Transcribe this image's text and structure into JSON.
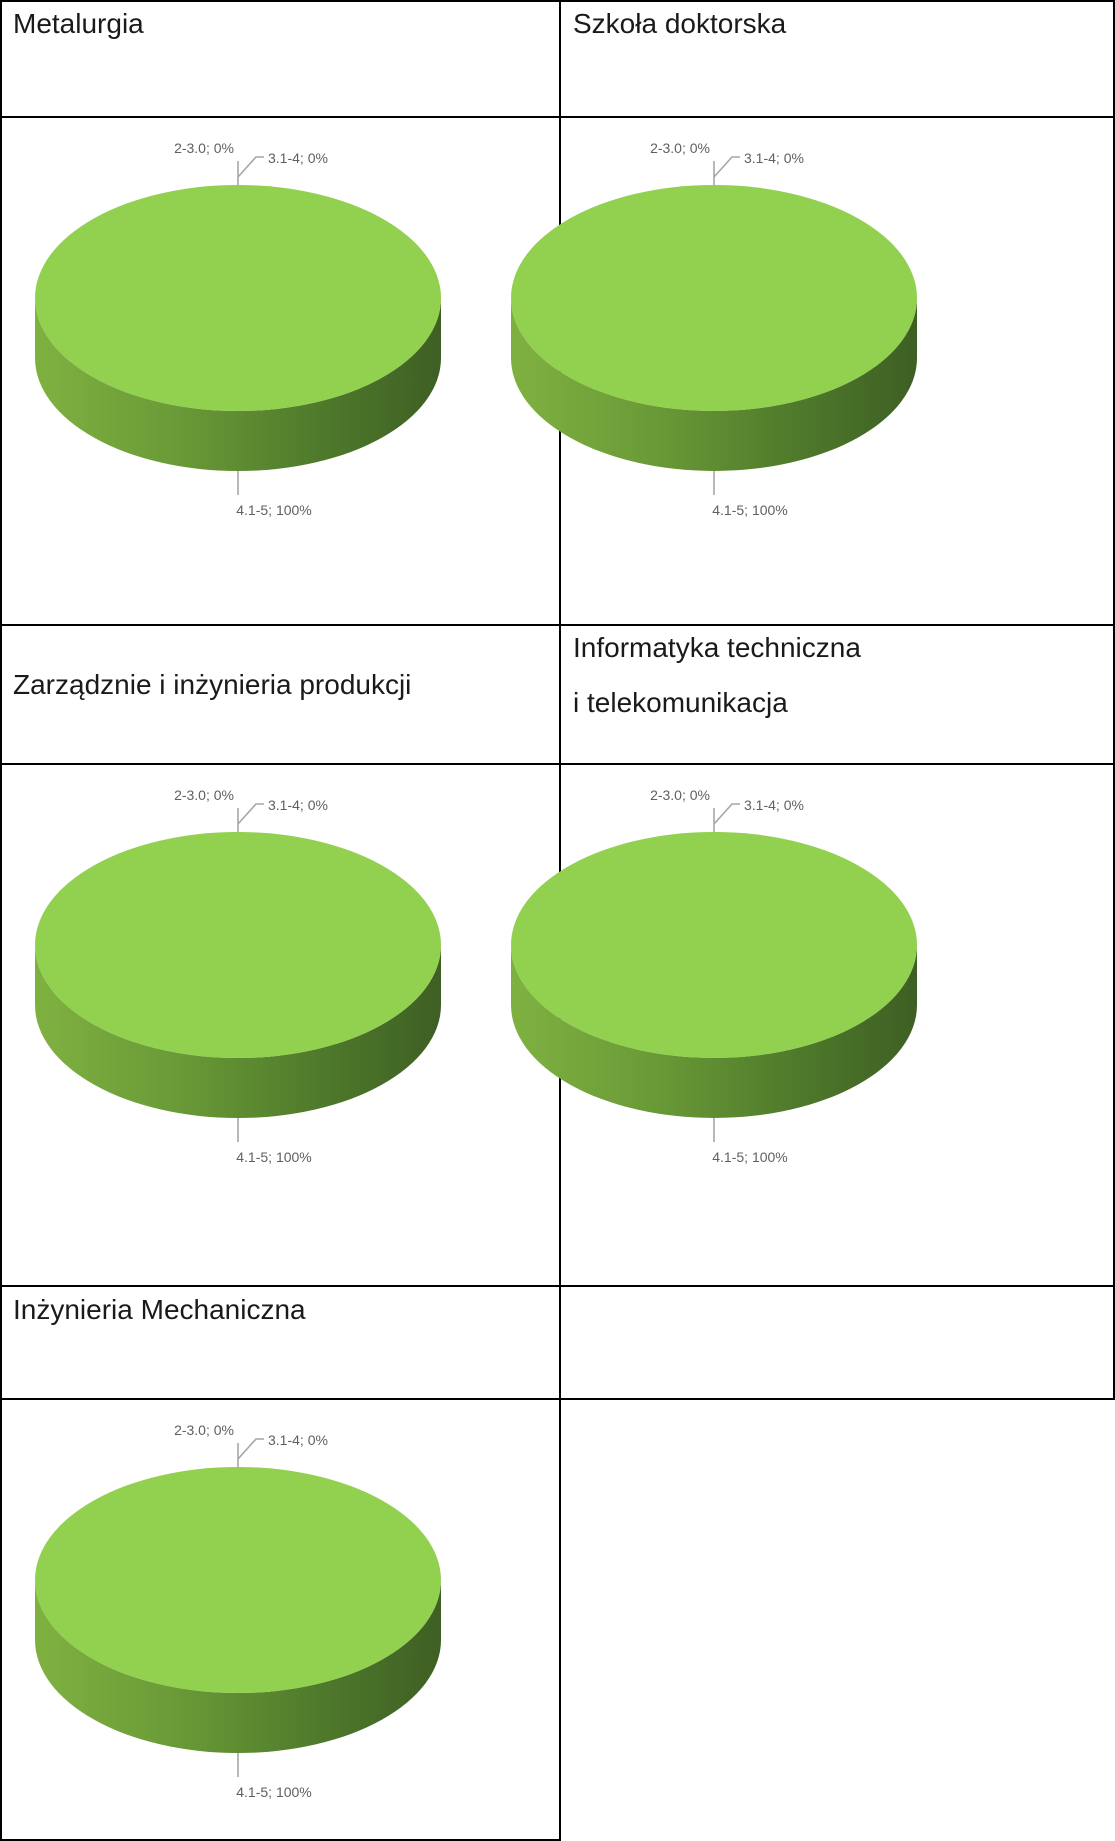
{
  "colors": {
    "top": "#92d050",
    "side_light": "#7fb141",
    "side_dark": "#3e5f24",
    "border": "#000000",
    "label": "#5f5f5f"
  },
  "chart_data": [
    {
      "type": "pie",
      "title": "Metalurgia",
      "categories": [
        "2-3.0",
        "3.1-4",
        "4.1-5"
      ],
      "values": [
        0,
        0,
        100
      ],
      "labels": [
        "2-3.0; 0%",
        "3.1-4; 0%",
        "4.1-5; 100%"
      ]
    },
    {
      "type": "pie",
      "title": "Szkoła doktorska",
      "categories": [
        "2-3.0",
        "3.1-4",
        "4.1-5"
      ],
      "values": [
        0,
        0,
        100
      ],
      "labels": [
        "2-3.0; 0%",
        "3.1-4; 0%",
        "4.1-5; 100%"
      ]
    },
    {
      "type": "pie",
      "title": "Zarządznie i inżynieria produkcji",
      "categories": [
        "2-3.0",
        "3.1-4",
        "4.1-5"
      ],
      "values": [
        0,
        0,
        100
      ],
      "labels": [
        "2-3.0; 0%",
        "3.1-4; 0%",
        "4.1-5; 100%"
      ]
    },
    {
      "type": "pie",
      "title_line1": "Informatyka techniczna",
      "title_line2": "i telekomunikacja",
      "categories": [
        "2-3.0",
        "3.1-4",
        "4.1-5"
      ],
      "values": [
        0,
        0,
        100
      ],
      "labels": [
        "2-3.0; 0%",
        "3.1-4; 0%",
        "4.1-5; 100%"
      ]
    },
    {
      "type": "pie",
      "title": "Inżynieria Mechaniczna",
      "categories": [
        "2-3.0",
        "3.1-4",
        "4.1-5"
      ],
      "values": [
        0,
        0,
        100
      ],
      "labels": [
        "2-3.0; 0%",
        "3.1-4; 0%",
        "4.1-5; 100%"
      ]
    }
  ]
}
